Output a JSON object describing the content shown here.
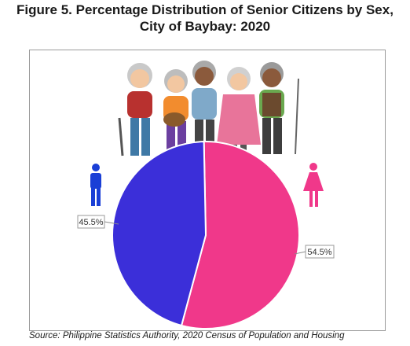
{
  "title_line1": "Figure 5. Percentage Distribution of Senior Citizens by Sex,",
  "title_line2": "City of Baybay: 2020",
  "source": "Source: Philippine Statistics Authority, 2020 Census of Population and Housing",
  "chart_data": {
    "type": "pie",
    "slices": [
      {
        "label": "Male",
        "value": 45.5,
        "display": "45.5%",
        "color": "#3b2fd9"
      },
      {
        "label": "Female",
        "value": 54.5,
        "display": "54.5%",
        "color": "#f0388a"
      }
    ]
  },
  "icons": [
    "male-icon",
    "female-icon",
    "seniors-illustration"
  ],
  "colors": {
    "male_icon": "#1a3fd6",
    "female_icon": "#f0388a"
  }
}
